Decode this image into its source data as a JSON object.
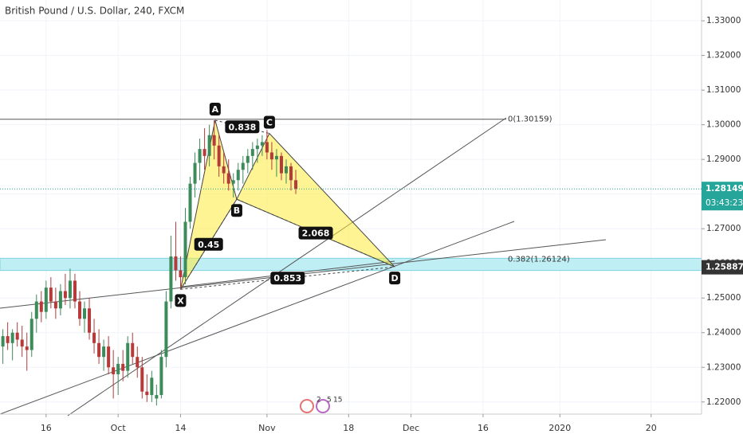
{
  "chart_data": {
    "type": "candlestick",
    "title": "British Pound / U.S. Dollar, 240, FXCM",
    "up_color": "#3d8b5a",
    "down_color": "#b53a3a",
    "xlim": [
      -9.6,
      136.5
    ],
    "ylim": [
      1.2165,
      1.336
    ],
    "xticks": [
      {
        "value": 0,
        "label": "16"
      },
      {
        "value": 15,
        "label": "Oct"
      },
      {
        "value": 28,
        "label": "14"
      },
      {
        "value": 46,
        "label": "Nov"
      },
      {
        "value": 63,
        "label": "18"
      },
      {
        "value": 76,
        "label": "Dec"
      },
      {
        "value": 91,
        "label": "16"
      },
      {
        "value": 107,
        "label": "2020"
      },
      {
        "value": 126,
        "label": "20"
      }
    ],
    "yticks": [
      {
        "value": 1.22,
        "label": "1.22000"
      },
      {
        "value": 1.23,
        "label": "1.23000"
      },
      {
        "value": 1.24,
        "label": "1.24000"
      },
      {
        "value": 1.25,
        "label": "1.25000"
      },
      {
        "value": 1.26,
        "label": "1.26000"
      },
      {
        "value": 1.27,
        "label": "1.27000"
      },
      {
        "value": 1.28,
        "label": "1.28000"
      },
      {
        "value": 1.29,
        "label": "1.29000"
      },
      {
        "value": 1.3,
        "label": "1.30000"
      },
      {
        "value": 1.31,
        "label": "1.31000"
      },
      {
        "value": 1.32,
        "label": "1.32000"
      },
      {
        "value": 1.33,
        "label": "1.33000"
      }
    ],
    "x": [
      -9,
      -8,
      -7,
      -6,
      -5,
      -4,
      -3,
      -2,
      -1,
      0,
      1,
      2,
      3,
      4,
      5,
      6,
      7,
      8,
      9,
      10,
      11,
      12,
      13,
      14,
      15,
      16,
      17,
      18,
      19,
      20,
      21,
      22,
      23,
      24,
      25,
      26,
      27,
      28,
      29,
      30,
      31,
      32,
      33,
      34,
      35,
      36,
      37,
      38,
      39,
      40,
      41,
      42,
      43,
      44,
      45,
      46,
      47,
      48,
      49,
      50,
      51,
      52
    ],
    "open": [
      1.236,
      1.239,
      1.237,
      1.24,
      1.238,
      1.236,
      1.235,
      1.244,
      1.249,
      1.246,
      1.253,
      1.249,
      1.247,
      1.252,
      1.25,
      1.255,
      1.249,
      1.244,
      1.247,
      1.24,
      1.237,
      1.233,
      1.236,
      1.23,
      1.228,
      1.231,
      1.229,
      1.237,
      1.233,
      1.23,
      1.223,
      1.222,
      1.221,
      1.222,
      1.233,
      1.249,
      1.262,
      1.258,
      1.256,
      1.272,
      1.283,
      1.289,
      1.293,
      1.291,
      1.297,
      1.294,
      1.288,
      1.286,
      1.283,
      1.284,
      1.287,
      1.289,
      1.291,
      1.293,
      1.294,
      1.295,
      1.292,
      1.29,
      1.291,
      1.286,
      1.288,
      1.284
    ],
    "high": [
      1.241,
      1.243,
      1.241,
      1.243,
      1.242,
      1.24,
      1.246,
      1.251,
      1.252,
      1.255,
      1.256,
      1.253,
      1.254,
      1.257,
      1.2585,
      1.257,
      1.252,
      1.249,
      1.25,
      1.244,
      1.241,
      1.238,
      1.239,
      1.235,
      1.233,
      1.235,
      1.239,
      1.24,
      1.236,
      1.233,
      1.228,
      1.229,
      1.225,
      1.235,
      1.252,
      1.268,
      1.272,
      1.262,
      1.276,
      1.285,
      1.292,
      1.296,
      1.299,
      1.3,
      1.3013,
      1.297,
      1.292,
      1.29,
      1.286,
      1.289,
      1.291,
      1.293,
      1.295,
      1.296,
      1.297,
      1.2985,
      1.295,
      1.293,
      1.292,
      1.29,
      1.289,
      1.287
    ],
    "low": [
      1.231,
      1.235,
      1.232,
      1.236,
      1.233,
      1.229,
      1.233,
      1.24,
      1.243,
      1.244,
      1.247,
      1.244,
      1.245,
      1.248,
      1.247,
      1.247,
      1.242,
      1.24,
      1.238,
      1.234,
      1.231,
      1.229,
      1.228,
      1.221,
      1.222,
      1.226,
      1.227,
      1.231,
      1.227,
      1.221,
      1.22,
      1.22,
      1.219,
      1.221,
      1.23,
      1.247,
      1.255,
      1.2525,
      1.254,
      1.27,
      1.279,
      1.284,
      1.287,
      1.288,
      1.29,
      1.285,
      1.283,
      1.281,
      1.279,
      1.281,
      1.283,
      1.286,
      1.287,
      1.289,
      1.291,
      1.29,
      1.287,
      1.285,
      1.284,
      1.283,
      1.281,
      1.28
    ],
    "close": [
      1.239,
      1.237,
      1.24,
      1.238,
      1.236,
      1.235,
      1.244,
      1.249,
      1.246,
      1.253,
      1.249,
      1.247,
      1.252,
      1.25,
      1.255,
      1.249,
      1.244,
      1.247,
      1.24,
      1.237,
      1.233,
      1.236,
      1.23,
      1.228,
      1.231,
      1.229,
      1.237,
      1.233,
      1.23,
      1.223,
      1.222,
      1.227,
      1.222,
      1.233,
      1.249,
      1.262,
      1.258,
      1.256,
      1.272,
      1.283,
      1.289,
      1.293,
      1.291,
      1.297,
      1.294,
      1.288,
      1.286,
      1.283,
      1.284,
      1.287,
      1.289,
      1.291,
      1.293,
      1.294,
      1.295,
      1.292,
      1.29,
      1.291,
      1.286,
      1.288,
      1.284,
      1.2815
    ],
    "pattern": [
      {
        "label": "X",
        "x": 28,
        "y": 1.2525
      },
      {
        "label": "A",
        "x": 35.2,
        "y": 1.3013
      },
      {
        "label": "B",
        "x": 39.7,
        "y": 1.2785
      },
      {
        "label": "C",
        "x": 46.5,
        "y": 1.2975
      },
      {
        "label": "D",
        "x": 72.6,
        "y": 1.259
      }
    ],
    "ratios": [
      {
        "label": "0.45",
        "from": 0,
        "to": 2
      },
      {
        "label": "0.838",
        "from": 1,
        "to": 3
      },
      {
        "label": "2.068",
        "from": 2,
        "to": 4
      },
      {
        "label": "0.853",
        "from": 0,
        "to": 4
      }
    ],
    "fib_labels": [
      "0(1.30159)",
      "0.382(1.26124)"
    ],
    "fib_levels": [
      1.30159,
      1.26124
    ],
    "last_price": {
      "value": 1.28149,
      "label": "1.28149",
      "countdown": "03:43:23"
    },
    "level_price": {
      "value": 1.25887,
      "label": "1.25887"
    },
    "events": [
      "2",
      "5",
      "15"
    ]
  }
}
